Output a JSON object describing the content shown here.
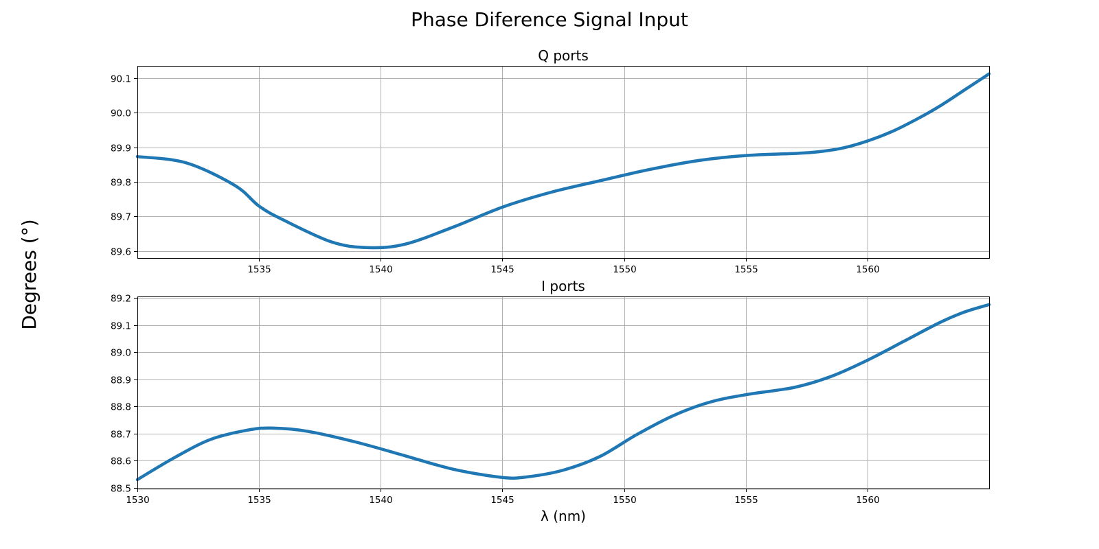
{
  "figure": {
    "title": "Phase Diference Signal Input",
    "shared_ylabel": "Degrees (°)",
    "line_color": "#1f77b4"
  },
  "chart_data": [
    {
      "type": "line",
      "title": "Q ports",
      "xlabel": "",
      "ylabel": "",
      "xlim": [
        1530,
        1565
      ],
      "ylim": [
        89.58,
        90.135
      ],
      "xticks": [
        1535,
        1540,
        1545,
        1550,
        1555,
        1560
      ],
      "xtick_labels": [
        "1535",
        "1540",
        "1545",
        "1550",
        "1555",
        "1560"
      ],
      "yticks": [
        89.6,
        89.7,
        89.8,
        89.9,
        90.0,
        90.1
      ],
      "ytick_labels": [
        "89.6",
        "89.7",
        "89.8",
        "89.9",
        "90.0",
        "90.1"
      ],
      "grid": true,
      "series": [
        {
          "x": [
            1530,
            1532,
            1534,
            1535,
            1536,
            1538,
            1539.5,
            1541,
            1543,
            1545,
            1547,
            1549,
            1551,
            1553,
            1555,
            1557,
            1558,
            1559,
            1560,
            1561,
            1562,
            1563,
            1564,
            1565
          ],
          "y": [
            89.873,
            89.855,
            89.79,
            89.73,
            89.69,
            89.626,
            89.61,
            89.62,
            89.67,
            89.727,
            89.77,
            89.803,
            89.835,
            89.861,
            89.876,
            89.882,
            89.887,
            89.898,
            89.918,
            89.945,
            89.98,
            90.02,
            90.066,
            90.112
          ]
        }
      ]
    },
    {
      "type": "line",
      "title": "I ports",
      "xlabel": "λ (nm)",
      "ylabel": "",
      "xlim": [
        1530,
        1565
      ],
      "ylim": [
        88.497,
        89.205
      ],
      "xticks": [
        1530,
        1535,
        1540,
        1545,
        1550,
        1555,
        1560
      ],
      "xtick_labels": [
        "1530",
        "1535",
        "1540",
        "1545",
        "1550",
        "1555",
        "1560"
      ],
      "yticks": [
        88.5,
        88.6,
        88.7,
        88.8,
        88.9,
        89.0,
        89.1,
        89.2
      ],
      "ytick_labels": [
        "88.5",
        "88.6",
        "88.7",
        "88.8",
        "88.9",
        "89.0",
        "89.1",
        "89.2"
      ],
      "grid": true,
      "series": [
        {
          "x": [
            1530,
            1531.5,
            1533,
            1534.5,
            1535.5,
            1537,
            1539,
            1541,
            1543,
            1545,
            1546,
            1547.5,
            1549,
            1550.5,
            1552,
            1553.5,
            1555,
            1557,
            1558.5,
            1560,
            1561.5,
            1563,
            1564,
            1565
          ],
          "y": [
            88.53,
            88.61,
            88.678,
            88.712,
            88.72,
            88.708,
            88.668,
            88.618,
            88.568,
            88.538,
            88.54,
            88.565,
            88.615,
            88.695,
            88.765,
            88.815,
            88.843,
            88.87,
            88.91,
            88.97,
            89.04,
            89.11,
            89.148,
            89.175
          ]
        }
      ]
    }
  ]
}
